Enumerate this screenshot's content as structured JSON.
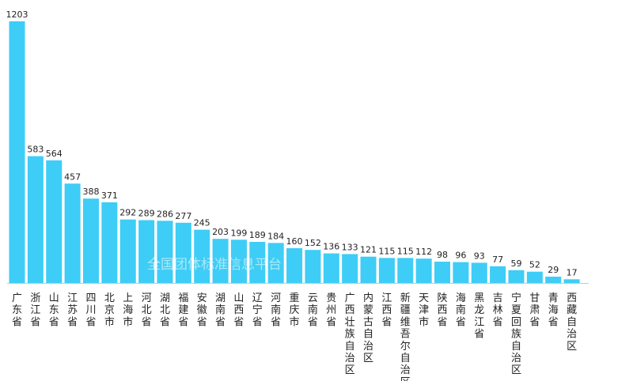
{
  "chart_data": {
    "type": "bar",
    "title": "",
    "xlabel": "",
    "ylabel": "",
    "ylim": [
      0,
      1203
    ],
    "grid": false,
    "legend": "none",
    "bar_color": "#3ecdf6",
    "baseline_color": "#9ad8ee",
    "categories": [
      "广东省",
      "浙江省",
      "山东省",
      "江苏省",
      "四川省",
      "北京市",
      "上海市",
      "河北省",
      "湖北省",
      "福建省",
      "安徽省",
      "湖南省",
      "山西省",
      "辽宁省",
      "河南省",
      "重庆市",
      "云南省",
      "贵州省",
      "广西壮族自治区",
      "内蒙古自治区",
      "江西省",
      "新疆维吾尔自治区",
      "天津市",
      "陕西省",
      "海南省",
      "黑龙江省",
      "吉林省",
      "宁夏回族自治区",
      "甘肃省",
      "青海省",
      "西藏自治区"
    ],
    "values": [
      1203,
      583,
      564,
      457,
      388,
      371,
      292,
      289,
      286,
      277,
      245,
      203,
      199,
      189,
      184,
      160,
      152,
      136,
      133,
      121,
      115,
      115,
      112,
      98,
      96,
      93,
      77,
      59,
      52,
      29,
      17
    ]
  },
  "watermark": "全国团体标准信息平台"
}
